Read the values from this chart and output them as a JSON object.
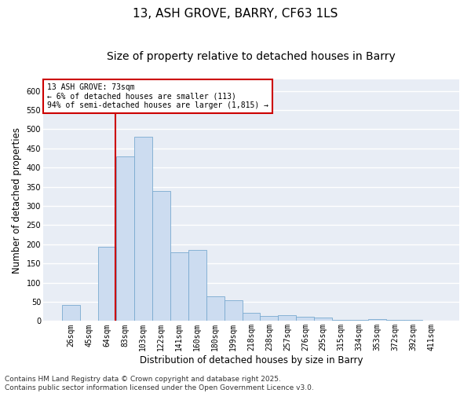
{
  "title": "13, ASH GROVE, BARRY, CF63 1LS",
  "subtitle": "Size of property relative to detached houses in Barry",
  "xlabel": "Distribution of detached houses by size in Barry",
  "ylabel": "Number of detached properties",
  "categories": [
    "26sqm",
    "45sqm",
    "64sqm",
    "83sqm",
    "103sqm",
    "122sqm",
    "141sqm",
    "160sqm",
    "180sqm",
    "199sqm",
    "218sqm",
    "238sqm",
    "257sqm",
    "276sqm",
    "295sqm",
    "315sqm",
    "334sqm",
    "353sqm",
    "372sqm",
    "392sqm",
    "411sqm"
  ],
  "values": [
    42,
    0,
    193,
    430,
    480,
    340,
    180,
    185,
    65,
    55,
    22,
    14,
    15,
    12,
    10,
    3,
    2,
    4,
    2,
    2,
    1
  ],
  "bar_color": "#ccdcf0",
  "bar_edge_color": "#7aaad0",
  "vline_color": "#cc0000",
  "annotation_text": "13 ASH GROVE: 73sqm\n← 6% of detached houses are smaller (113)\n94% of semi-detached houses are larger (1,815) →",
  "annotation_box_color": "white",
  "annotation_box_edge": "#cc0000",
  "ylim": [
    0,
    630
  ],
  "yticks": [
    0,
    50,
    100,
    150,
    200,
    250,
    300,
    350,
    400,
    450,
    500,
    550,
    600
  ],
  "background_color": "#e8edf5",
  "grid_color": "white",
  "footnote": "Contains HM Land Registry data © Crown copyright and database right 2025.\nContains public sector information licensed under the Open Government Licence v3.0.",
  "title_fontsize": 11,
  "subtitle_fontsize": 10,
  "label_fontsize": 8.5,
  "tick_fontsize": 7,
  "footnote_fontsize": 6.5,
  "fig_width": 6.0,
  "fig_height": 5.0,
  "dpi": 100
}
